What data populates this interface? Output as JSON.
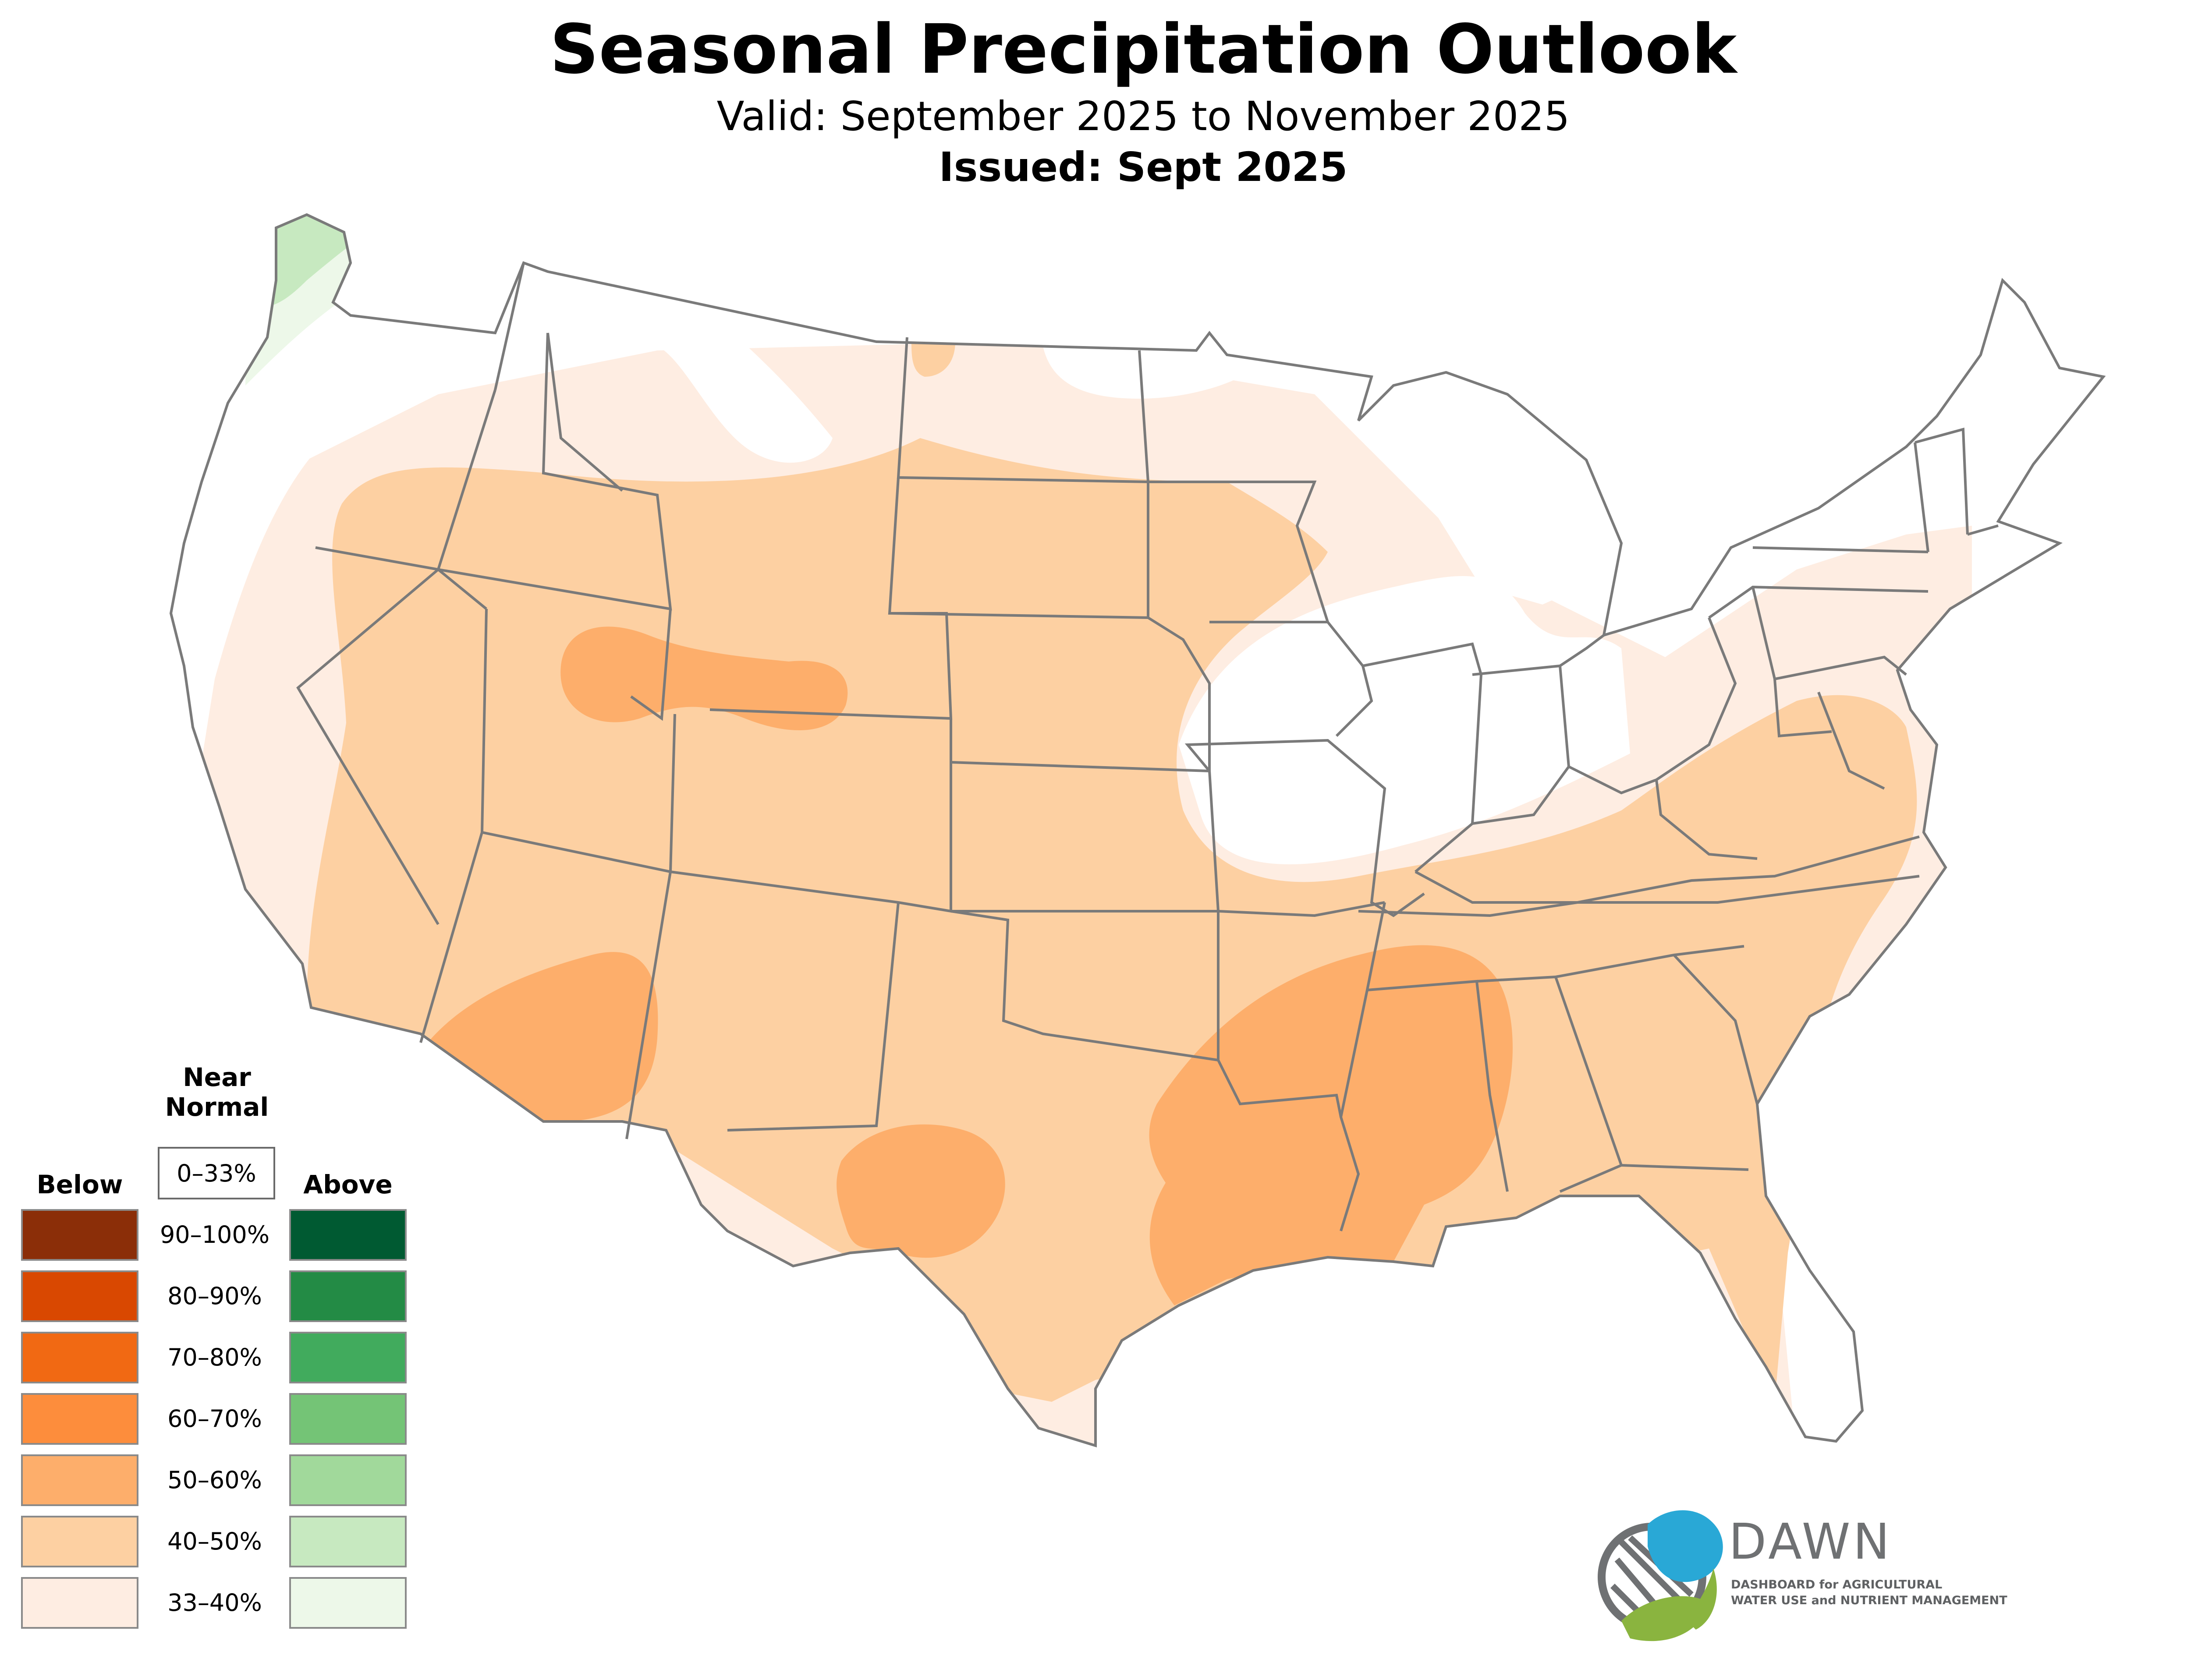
{
  "header": {
    "title": "Seasonal Precipitation Outlook",
    "valid": "Valid: September 2025 to November 2025",
    "issued": "Issued: Sept 2025"
  },
  "legend": {
    "below_label": "Below",
    "near_normal_label_1": "Near",
    "near_normal_label_2": "Normal",
    "above_label": "Above",
    "near_normal_range": "0–33%",
    "bins": [
      {
        "range": "90–100%",
        "below_color": "#8b2e08",
        "above_color": "#005a32"
      },
      {
        "range": "80–90%",
        "below_color": "#d94801",
        "above_color": "#238b45"
      },
      {
        "range": "70–80%",
        "below_color": "#f16913",
        "above_color": "#41ab5d"
      },
      {
        "range": "60–70%",
        "below_color": "#fd8d3c",
        "above_color": "#74c476"
      },
      {
        "range": "50–60%",
        "below_color": "#fdae6b",
        "above_color": "#a1d99b"
      },
      {
        "range": "40–50%",
        "below_color": "#fdd0a2",
        "above_color": "#c7e9c0"
      },
      {
        "range": "33–40%",
        "below_color": "#feede2",
        "above_color": "#edf8e9"
      }
    ]
  },
  "logo": {
    "name": "DAWN",
    "tagline_1": "DASHBOARD for AGRICULTURAL",
    "tagline_2": "WATER USE and NUTRIENT MANAGEMENT",
    "blue": "#29a8d6",
    "green": "#8ab43f",
    "gray": "#6f7173"
  },
  "colors": {
    "border": "#7a7a7a"
  }
}
